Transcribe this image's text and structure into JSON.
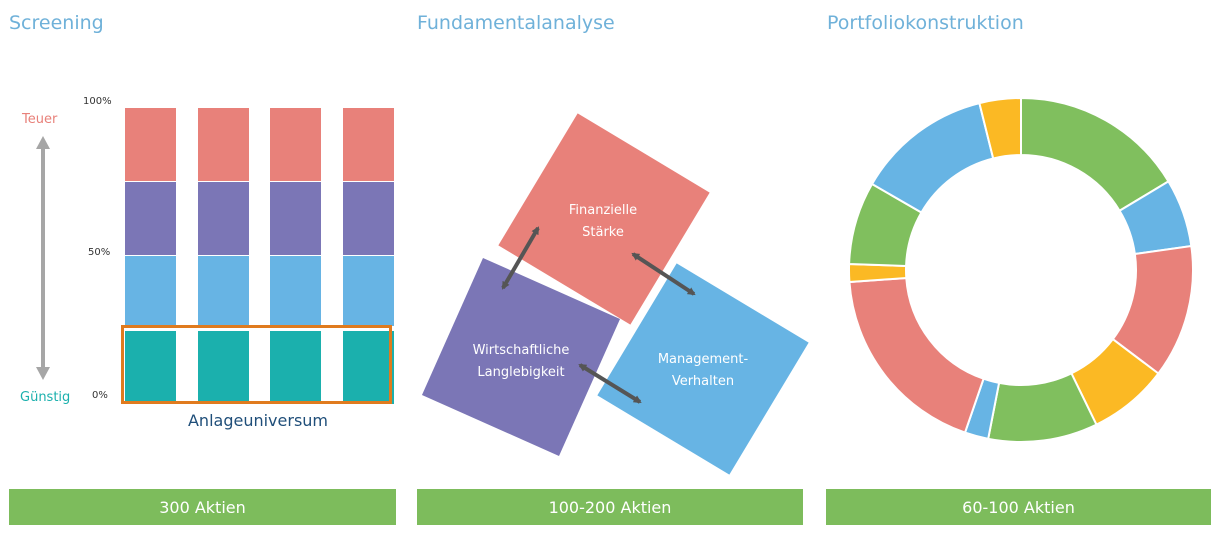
{
  "panels": [
    {
      "title": "Screening",
      "footer": "300 Aktien"
    },
    {
      "title": "Fundamentalanalyse",
      "footer": "100-200 Aktien"
    },
    {
      "title": "Portfoliokonstruktion",
      "footer": "60-100 Aktien"
    }
  ],
  "screening": {
    "top_label": "Teuer",
    "bottom_label": "Günstig",
    "pct_100": "100%",
    "pct_50": "50%",
    "pct_0": "0%",
    "universe_label": "Anlageuniversum",
    "colors": {
      "salmon": "#e8817a",
      "purple": "#7b76b6",
      "blue": "#67b4e4",
      "teal": "#1bb0ad",
      "highlight": "#e07b1e"
    }
  },
  "fundamental": {
    "box_finanz_line1": "Finanzielle",
    "box_finanz_line2": "Stärke",
    "box_wirt_line1": "Wirtschaftliche",
    "box_wirt_line2": "Langlebigkeit",
    "box_mgmt_line1": "Management-",
    "box_mgmt_line2": "Verhalten"
  },
  "portfolio": {
    "colors": {
      "green": "#80bf5e",
      "blue": "#67b4e4",
      "salmon": "#e8817a",
      "orange": "#fbb924"
    }
  }
}
